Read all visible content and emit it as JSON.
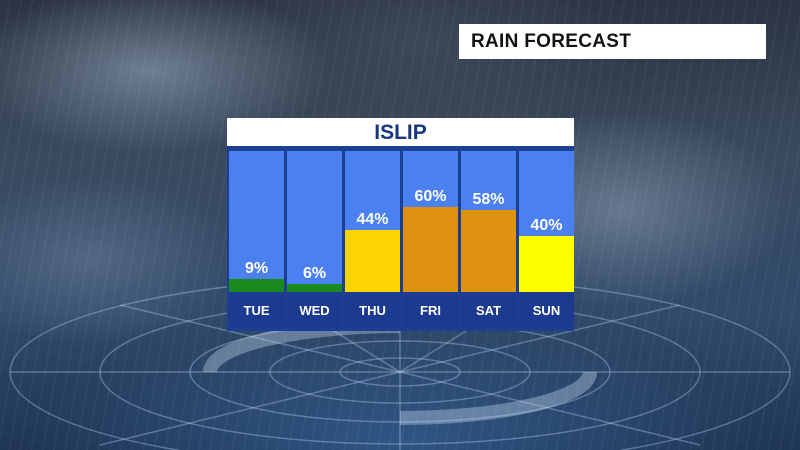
{
  "header": {
    "title": "RAIN FORECAST"
  },
  "location": "ISLIP",
  "colors": {
    "column_background": "#4a80f0",
    "low": "#1a8a1f",
    "moderate": "#ffd400",
    "high": "#de9210",
    "panel": "#1d3f93"
  },
  "chart_data": {
    "type": "bar",
    "title": "ISLIP",
    "categories": [
      "TUE",
      "WED",
      "THU",
      "FRI",
      "SAT",
      "SUN"
    ],
    "values": [
      9,
      6,
      44,
      60,
      58,
      40
    ],
    "value_labels": [
      "9%",
      "6%",
      "44%",
      "60%",
      "58%",
      "40%"
    ],
    "bar_colors": [
      "#1a8a1f",
      "#1a8a1f",
      "#ffd400",
      "#de9210",
      "#de9210",
      "#ffff00"
    ],
    "ylim": [
      0,
      100
    ],
    "grid": false,
    "legend": "none"
  }
}
